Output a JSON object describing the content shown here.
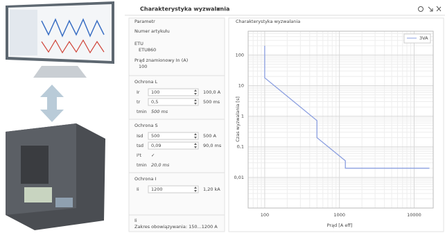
{
  "window": {
    "title": "Charakterystyka wyzwalania"
  },
  "form": {
    "header": "Parametr",
    "article_label": "Numer artykułu",
    "etu_label": "ETU",
    "etu_value": "ETU860",
    "rated_label": "Prąd znamionowy In (A)",
    "rated_value": "100",
    "sections": [
      {
        "title": "Ochrona L",
        "rows": [
          {
            "label": "Ir",
            "input": "100",
            "result": "100,0 A"
          },
          {
            "label": "tr",
            "input": "0,5",
            "result": "500 ms"
          },
          {
            "label": "tmin",
            "value": "500 ms"
          }
        ]
      },
      {
        "title": "Ochrona S",
        "rows": [
          {
            "label": "Isd",
            "input": "500",
            "result": "500 A"
          },
          {
            "label": "tsd",
            "input": "0,09",
            "result": "90,0 ms"
          },
          {
            "label": "I²t",
            "value": "✓"
          },
          {
            "label": "tmin",
            "value": "20,0 ms"
          }
        ]
      },
      {
        "title": "Ochrona I",
        "rows": [
          {
            "label": "Ii",
            "input": "1200",
            "result": "1,20 kA"
          }
        ]
      }
    ],
    "footer_label": "Ii",
    "footer_text": "Zakres obowiązywania: 150...1200 A"
  },
  "chart_data": {
    "type": "line",
    "title": "Charakterystyka wyzwalania",
    "x_label": "Prąd [A eff]",
    "y_label": "Czas wyzwalania [s]",
    "xscale": "log",
    "yscale": "log",
    "grid": true,
    "legend": "top-right",
    "xlim": [
      60,
      18000
    ],
    "ylim": [
      0.001,
      600
    ],
    "xticks": [
      100,
      1000,
      10000
    ],
    "yticks": [
      {
        "value": 0.01,
        "label": "0,01"
      },
      {
        "value": 0.1,
        "label": "0,1"
      },
      1,
      10,
      100
    ],
    "series": [
      {
        "name": "3VA",
        "color": "#8b9fe0",
        "x": [
          100,
          100,
          500,
          500,
          1200,
          1200,
          16000
        ],
        "values": [
          200,
          18,
          0.72,
          0.2,
          0.035,
          0.02,
          0.02
        ]
      }
    ]
  }
}
